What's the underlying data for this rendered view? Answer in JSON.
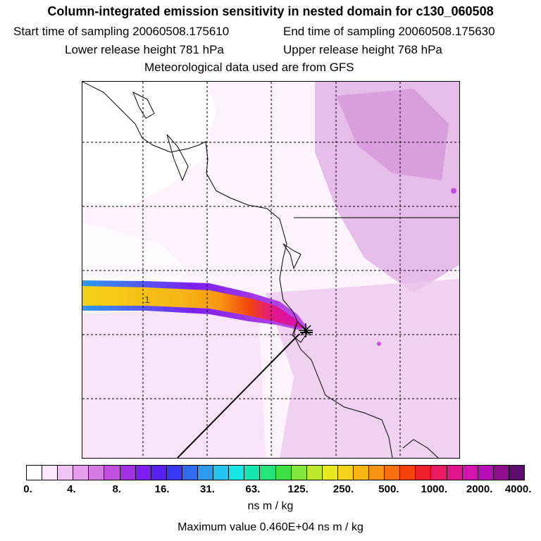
{
  "header": {
    "title": "Column-integrated emission sensitivity in nested domain for c130_060508",
    "start_label": "Start time of sampling 20060508.175610",
    "end_label": "End time of sampling 20060508.175630",
    "lower_label": "Lower release height  781 hPa",
    "upper_label": "Upper release height  768 hPa",
    "met_label": "Meteorological data used are from GFS"
  },
  "map": {
    "plume_label": "1",
    "colors": {
      "background": "#ffffff",
      "pale": "#f3dcf3",
      "light": "#e6bde8",
      "medium": "#cf8ad6",
      "coast": "#000000"
    }
  },
  "colorbar": {
    "tick_labels": [
      "0.",
      "4.",
      "8.",
      "16.",
      "31.",
      "63.",
      "125.",
      "250.",
      "500.",
      "1000.",
      "2000.",
      "4000."
    ],
    "colors": [
      "#ffffff",
      "#fbe6fb",
      "#f2c4f4",
      "#e8a0ee",
      "#d67ae2",
      "#c24fe0",
      "#a22ee6",
      "#7d1ff0",
      "#5a1ff5",
      "#3838f5",
      "#2f6cf2",
      "#2b9af0",
      "#23c7f2",
      "#15e6e6",
      "#14e8b0",
      "#24e57a",
      "#40e040",
      "#7fe83a",
      "#bde82e",
      "#e8e81e",
      "#f5d21a",
      "#f7b515",
      "#f79512",
      "#f5700f",
      "#f4430c",
      "#f01e2a",
      "#e81a60",
      "#e0158e",
      "#d611b4",
      "#b80fb8",
      "#8f0c8f",
      "#5e0a6e"
    ],
    "units": "ns m / kg"
  },
  "footer": {
    "max_value": "Maximum value  0.460E+04 ns m / kg"
  }
}
